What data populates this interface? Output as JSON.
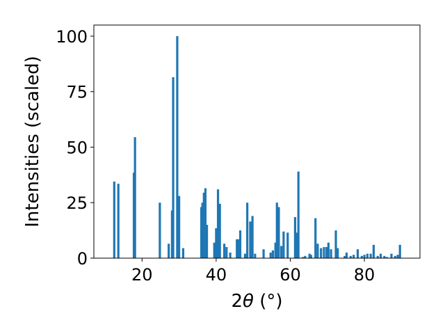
{
  "chart_data": {
    "type": "bar",
    "xlabel_main": "2",
    "xlabel_symbol": "θ",
    "xlabel_unit": " (°)",
    "ylabel": "Intensities (scaled)",
    "xlim": [
      7,
      95
    ],
    "ylim": [
      0,
      105
    ],
    "xticks": [
      20,
      40,
      60,
      80
    ],
    "yticks": [
      0,
      25,
      50,
      75,
      100
    ],
    "bar_width": 0.6,
    "color": "#1f77b4",
    "grid": false,
    "x": [
      12.5,
      13.6,
      17.8,
      18.1,
      24.8,
      27.2,
      28.1,
      28.4,
      29.5,
      30.0,
      31.1,
      36.0,
      36.3,
      36.7,
      37.1,
      37.5,
      39.5,
      40.0,
      40.5,
      41.0,
      42.2,
      42.8,
      43.8,
      45.6,
      46.0,
      46.5,
      47.8,
      48.4,
      49.2,
      49.8,
      50.5,
      52.8,
      54.7,
      55.3,
      56.0,
      56.4,
      56.9,
      57.6,
      58.2,
      59.3,
      61.3,
      61.7,
      62.2,
      63.4,
      64.0,
      65.2,
      65.6,
      66.8,
      67.4,
      68.3,
      69.1,
      69.8,
      70.3,
      71.0,
      72.3,
      72.8,
      74.7,
      75.2,
      76.3,
      77.1,
      78.2,
      79.3,
      80.0,
      80.8,
      81.7,
      82.5,
      83.6,
      84.4,
      85.4,
      86.1,
      87.3,
      88.3,
      89.0,
      89.6
    ],
    "values": [
      34.5,
      33.5,
      38.5,
      54.5,
      25.0,
      6.5,
      21.5,
      81.5,
      100,
      28.0,
      4.5,
      23.0,
      25.0,
      29.5,
      31.5,
      15.0,
      7.0,
      13.5,
      31.0,
      24.5,
      6.5,
      5.0,
      2.5,
      8.5,
      8.5,
      12.5,
      2.0,
      25.0,
      16.5,
      19.0,
      2.0,
      4.0,
      2.5,
      3.5,
      7.0,
      25.0,
      23.0,
      5.5,
      12.0,
      11.5,
      18.5,
      11.5,
      39.0,
      0.5,
      1.0,
      2.0,
      1.5,
      18.0,
      6.5,
      4.5,
      5.0,
      5.0,
      7.0,
      4.0,
      12.5,
      4.5,
      1.0,
      2.5,
      1.0,
      1.5,
      4.0,
      1.0,
      1.5,
      2.0,
      2.0,
      6.0,
      1.0,
      2.0,
      1.0,
      0.5,
      2.0,
      1.0,
      1.5,
      6.0
    ]
  }
}
